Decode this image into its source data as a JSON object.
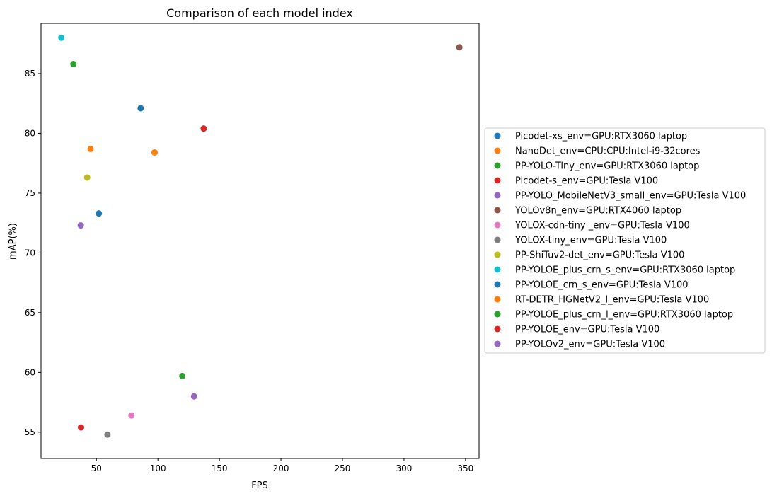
{
  "chart_data": {
    "type": "scatter",
    "title": "Comparison of each model index",
    "xlabel": "FPS",
    "ylabel": "mAP(%)",
    "xlim": [
      5,
      361
    ],
    "ylim": [
      52.8,
      89.2
    ],
    "xticks": [
      50,
      100,
      150,
      200,
      250,
      300,
      350
    ],
    "yticks": [
      55,
      60,
      65,
      70,
      75,
      80,
      85
    ],
    "grid": false,
    "legend_position": "outside right",
    "series": [
      {
        "name": "Picodet-xs_env=GPU:RTX3060 laptop",
        "color": "#1f77b4",
        "x": 86,
        "y": 82.1
      },
      {
        "name": "NanoDet_env=CPU:CPU:Intel-i9-32cores",
        "color": "#ff7f0e",
        "x": 97.3,
        "y": 78.4
      },
      {
        "name": "PP-YOLO-Tiny_env=GPU:RTX3060 laptop",
        "color": "#2ca02c",
        "x": 119.8,
        "y": 59.7
      },
      {
        "name": "Picodet-s_env=GPU:Tesla V100",
        "color": "#d62728",
        "x": 137.2,
        "y": 80.4
      },
      {
        "name": "PP-YOLO_MobileNetV3_small_env=GPU:Tesla V100",
        "color": "#9467bd",
        "x": 129.4,
        "y": 58
      },
      {
        "name": "YOLOv8n_env=GPU:RTX4060 laptop",
        "color": "#8c564b",
        "x": 345,
        "y": 87.2
      },
      {
        "name": "YOLOX-cdn-tiny _env=GPU:Tesla V100",
        "color": "#e377c2",
        "x": 78.5,
        "y": 56.4
      },
      {
        "name": "YOLOX-tiny_env=GPU:Tesla V100",
        "color": "#7f7f7f",
        "x": 59,
        "y": 54.8
      },
      {
        "name": "PP-ShiTuv2-det_env=GPU:Tesla V100",
        "color": "#bcbd22",
        "x": 42.5,
        "y": 76.3
      },
      {
        "name": "PP-YOLOE_plus_crn_s_env=GPU:RTX3060 laptop",
        "color": "#17becf",
        "x": 21.5,
        "y": 88
      },
      {
        "name": "PP-YOLOE_crn_s_env=GPU:Tesla V100",
        "color": "#1f77b4",
        "x": 52,
        "y": 73.3
      },
      {
        "name": "RT-DETR_HGNetV2_l_env=GPU:Tesla V100",
        "color": "#ff7f0e",
        "x": 45.3,
        "y": 78.7
      },
      {
        "name": "PP-YOLOE_plus_crn_l_env=GPU:RTX3060 laptop",
        "color": "#2ca02c",
        "x": 31.3,
        "y": 85.8
      },
      {
        "name": "PP-YOLOE_env=GPU:Tesla V100",
        "color": "#d62728",
        "x": 37.5,
        "y": 55.4
      },
      {
        "name": "PP-YOLOv2_env=GPU:Tesla V100",
        "color": "#9467bd",
        "x": 37.3,
        "y": 72.3
      }
    ]
  }
}
